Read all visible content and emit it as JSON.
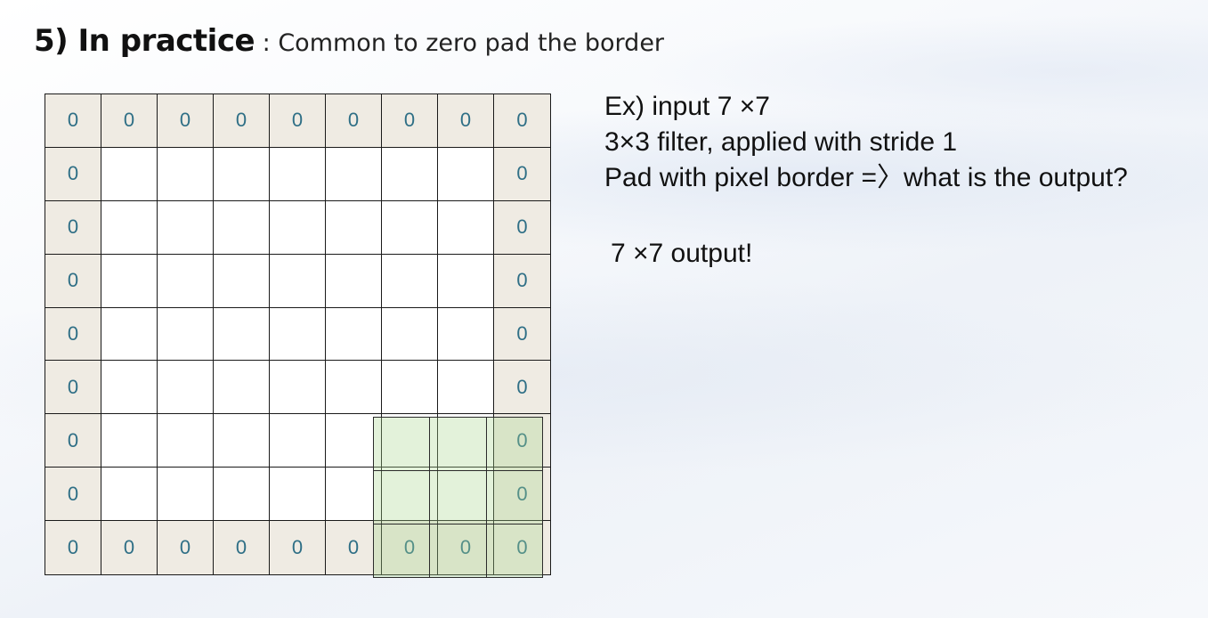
{
  "title": {
    "strong": "5) In practice",
    "rest": " : Common to zero pad the border"
  },
  "grid": {
    "rows": 9,
    "cols": 9,
    "pad_value": "0",
    "pad_color": "#efebe3",
    "value_color": "#2f6f86"
  },
  "filter": {
    "size": "3×3",
    "color": "#a8d68c"
  },
  "example": {
    "line1": "Ex) input 7 ×7",
    "line2": "3×3 filter, applied with stride 1",
    "line3": "Pad with pixel border =〉what is the output?",
    "answer": "7 ×7 output!"
  }
}
